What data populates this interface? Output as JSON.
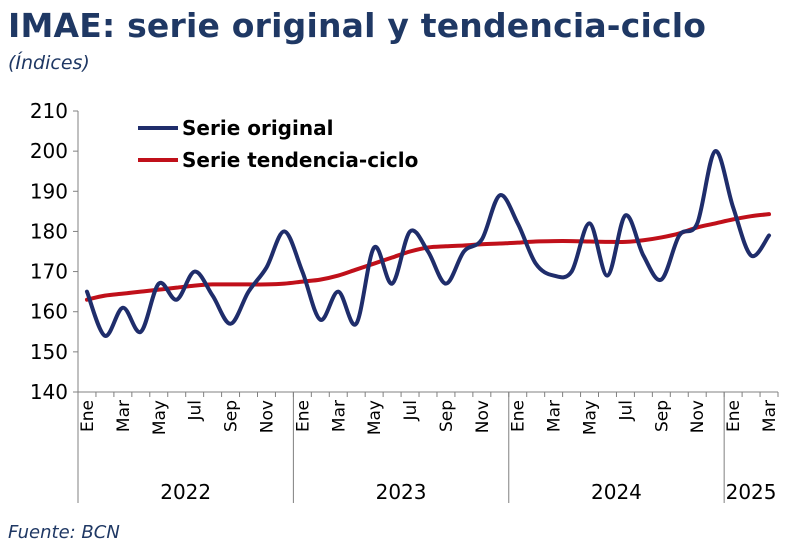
{
  "title": "IMAE: serie original y tendencia-ciclo",
  "subtitle": "(Índices)",
  "source": "Fuente: BCN",
  "chart_data": {
    "type": "line",
    "ylim": [
      140,
      210
    ],
    "yticks": [
      140,
      150,
      160,
      170,
      180,
      190,
      200,
      210
    ],
    "x": [
      "2022-01",
      "2022-02",
      "2022-03",
      "2022-04",
      "2022-05",
      "2022-06",
      "2022-07",
      "2022-08",
      "2022-09",
      "2022-10",
      "2022-11",
      "2022-12",
      "2023-01",
      "2023-02",
      "2023-03",
      "2023-04",
      "2023-05",
      "2023-06",
      "2023-07",
      "2023-08",
      "2023-09",
      "2023-10",
      "2023-11",
      "2023-12",
      "2024-01",
      "2024-02",
      "2024-03",
      "2024-04",
      "2024-05",
      "2024-06",
      "2024-07",
      "2024-08",
      "2024-09",
      "2024-10",
      "2024-11",
      "2024-12",
      "2025-01",
      "2025-02",
      "2025-03"
    ],
    "month_labels": [
      "Ene",
      "",
      "Mar",
      "",
      "May",
      "",
      "Jul",
      "",
      "Sep",
      "",
      "Nov",
      "",
      "Ene",
      "",
      "Mar",
      "",
      "May",
      "",
      "Jul",
      "",
      "Sep",
      "",
      "Nov",
      "",
      "Ene",
      "",
      "Mar",
      "",
      "May",
      "",
      "Jul",
      "",
      "Sep",
      "",
      "Nov",
      "",
      "Ene",
      "",
      "Mar"
    ],
    "years": [
      {
        "label": "2022",
        "months": 12
      },
      {
        "label": "2023",
        "months": 12
      },
      {
        "label": "2024",
        "months": 12
      },
      {
        "label": "2025",
        "months": 3
      }
    ],
    "series": [
      {
        "name": "Serie original",
        "color": "#1f2d6b",
        "values": [
          165,
          154,
          161,
          155,
          167,
          163,
          170,
          164,
          157,
          165,
          171,
          180,
          170,
          158,
          165,
          157,
          176,
          167,
          180,
          175,
          167,
          175,
          178,
          189,
          182,
          172,
          169,
          170,
          182,
          169,
          184,
          174,
          168,
          179,
          182,
          200,
          186,
          174,
          179
        ]
      },
      {
        "name": "Serie tendencia-ciclo",
        "color": "#c0101a",
        "values": [
          163,
          164,
          164.5,
          165,
          165.5,
          166,
          166.5,
          166.8,
          166.8,
          166.8,
          166.8,
          167,
          167.5,
          168,
          169,
          170.5,
          172,
          173.5,
          175,
          176,
          176.3,
          176.5,
          176.8,
          177,
          177.2,
          177.5,
          177.6,
          177.6,
          177.5,
          177.4,
          177.4,
          177.8,
          178.5,
          179.5,
          181,
          182,
          183,
          183.8,
          184.3
        ]
      }
    ],
    "legend_position": "top-left",
    "grid": false
  }
}
